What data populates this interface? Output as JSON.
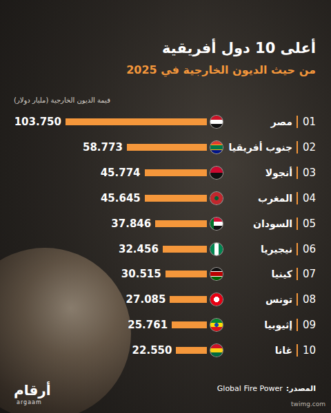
{
  "chart_data": {
    "type": "bar",
    "orientation": "horizontal",
    "title": "أعلى 10 دول أفريقية",
    "subtitle": "من حيث الديون الخارجية في 2025",
    "x_label": "قيمة الديون الخارجية (مليار دولار)",
    "ranks": [
      "01",
      "02",
      "03",
      "04",
      "05",
      "06",
      "07",
      "08",
      "09",
      "10"
    ],
    "categories": [
      "مصر",
      "جنوب أفريقيا",
      "أنجولا",
      "المغرب",
      "السودان",
      "نيجيريا",
      "كينيا",
      "تونس",
      "إثيوبيا",
      "غانا"
    ],
    "values": [
      103.75,
      58.773,
      45.774,
      45.645,
      37.846,
      32.456,
      30.515,
      27.085,
      25.761,
      22.55
    ],
    "value_labels": [
      "103.750",
      "58.773",
      "45.774",
      "45.645",
      "37.846",
      "32.456",
      "30.515",
      "27.085",
      "25.761",
      "22.550"
    ],
    "xlim": [
      0,
      103.75
    ],
    "color": "#f5973b",
    "data_labels": true,
    "tick_labels": false,
    "grid": false,
    "source_label": "المصدر:",
    "source": "Global Fire Power",
    "logo": "أرقام",
    "logo_latin": "argaam",
    "watermark": "twimg.com"
  }
}
